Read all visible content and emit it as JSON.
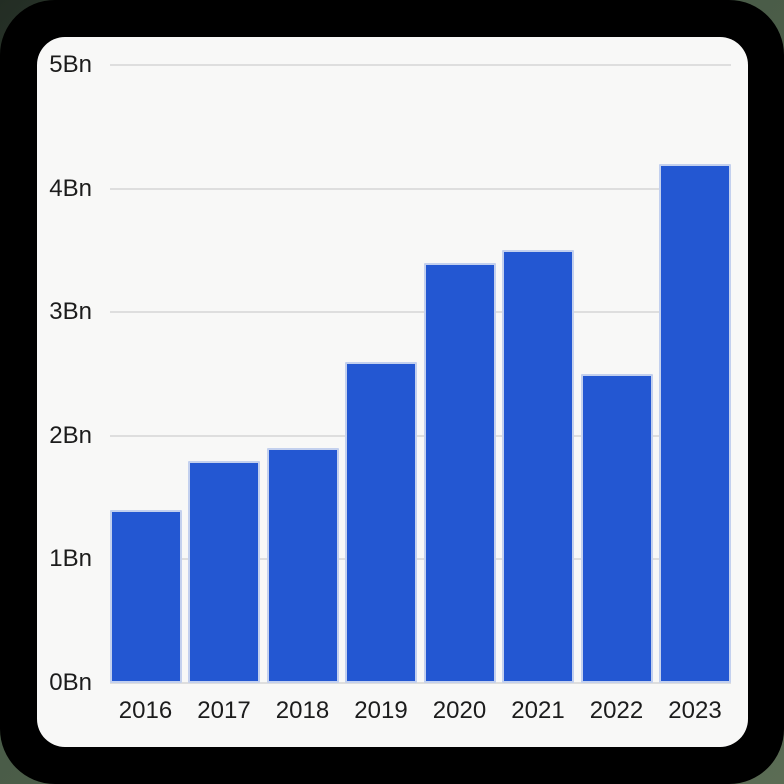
{
  "chart_data": {
    "type": "bar",
    "title": "",
    "xlabel": "",
    "ylabel": "",
    "categories": [
      "2016",
      "2017",
      "2018",
      "2019",
      "2020",
      "2021",
      "2022",
      "2023"
    ],
    "values": [
      1.4,
      1.8,
      1.9,
      2.6,
      3.4,
      3.5,
      2.5,
      4.2
    ],
    "unit_suffix": "Bn",
    "ylim": [
      0,
      5
    ],
    "ytick_labels": [
      "0Bn",
      "1Bn",
      "2Bn",
      "3Bn",
      "4Bn",
      "5Bn"
    ],
    "grid": true,
    "legend": "none",
    "colors": {
      "bar": "#2357d2",
      "bar_border": "#c3d0ee",
      "gridline": "#dedede",
      "axis_text": "#1c1c1c",
      "card_background": "#f8f8f7",
      "frame_background": "#000000",
      "page_background_dark": "#232d24",
      "page_background_mid": "#495b47",
      "page_background_light": "#5b6c54"
    }
  }
}
